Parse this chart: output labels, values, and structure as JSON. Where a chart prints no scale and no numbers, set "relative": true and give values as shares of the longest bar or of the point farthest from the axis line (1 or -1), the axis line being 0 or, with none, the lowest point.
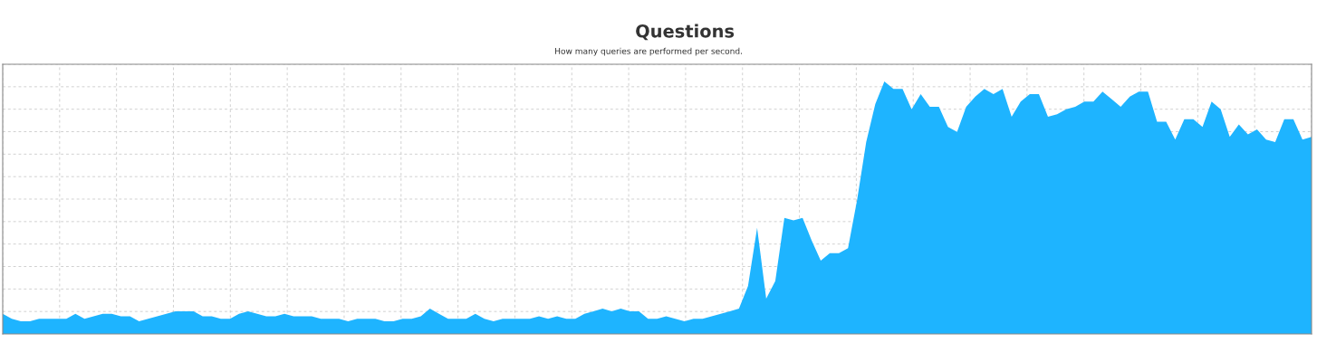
{
  "chart_data": {
    "type": "area",
    "title": "Questions",
    "subtitle": "How many queries are performed per second.",
    "relative": true,
    "grid": true,
    "color": "#1eb4ff",
    "categories": [
      null,
      null,
      null,
      null,
      null,
      null,
      null,
      null,
      null,
      null,
      null,
      null,
      null,
      null,
      null,
      null,
      null,
      null,
      null,
      null,
      null,
      null,
      null,
      null,
      null,
      null,
      null,
      null,
      null,
      null,
      null,
      null,
      null,
      null,
      null,
      null,
      null,
      null,
      null,
      null,
      null,
      null,
      null,
      null,
      null,
      null,
      null,
      null,
      null,
      null,
      null,
      null,
      null,
      null,
      null,
      null,
      null,
      null,
      null,
      null,
      null,
      null,
      null,
      null,
      null,
      null,
      null,
      null,
      null,
      null,
      null,
      null,
      null,
      null,
      null,
      null,
      null,
      null,
      null,
      null,
      null,
      null,
      null,
      null,
      null,
      null,
      null,
      null,
      null,
      null,
      null,
      null,
      null,
      null,
      null,
      null,
      null,
      null,
      null,
      null,
      null,
      null,
      null,
      null,
      null,
      null,
      null,
      null,
      null,
      null,
      null,
      null,
      null,
      null,
      null,
      null,
      null,
      null,
      null,
      null,
      null,
      null,
      null,
      null,
      null,
      null,
      null,
      null,
      null,
      null,
      null,
      null,
      null,
      null,
      null,
      null,
      null,
      null,
      null,
      null,
      null,
      null,
      null,
      null,
      null
    ],
    "values": [
      0.08,
      0.06,
      0.05,
      0.05,
      0.06,
      0.06,
      0.06,
      0.06,
      0.08,
      0.06,
      0.07,
      0.08,
      0.08,
      0.07,
      0.07,
      0.05,
      0.06,
      0.07,
      0.08,
      0.09,
      0.09,
      0.09,
      0.07,
      0.07,
      0.06,
      0.06,
      0.08,
      0.09,
      0.08,
      0.07,
      0.07,
      0.08,
      0.07,
      0.07,
      0.07,
      0.06,
      0.06,
      0.06,
      0.05,
      0.06,
      0.06,
      0.06,
      0.05,
      0.05,
      0.06,
      0.06,
      0.07,
      0.1,
      0.08,
      0.06,
      0.06,
      0.06,
      0.08,
      0.06,
      0.05,
      0.06,
      0.06,
      0.06,
      0.06,
      0.07,
      0.06,
      0.07,
      0.06,
      0.06,
      0.08,
      0.09,
      0.1,
      0.09,
      0.1,
      0.09,
      0.09,
      0.06,
      0.06,
      0.07,
      0.06,
      0.05,
      0.06,
      0.06,
      0.07,
      0.08,
      0.09,
      0.1,
      0.19,
      0.42,
      0.14,
      0.21,
      0.46,
      0.45,
      0.46,
      0.37,
      0.29,
      0.32,
      0.32,
      0.34,
      0.53,
      0.76,
      0.91,
      1.0,
      0.97,
      0.97,
      0.89,
      0.95,
      0.9,
      0.9,
      0.82,
      0.8,
      0.9,
      0.94,
      0.97,
      0.95,
      0.97,
      0.86,
      0.92,
      0.95,
      0.95,
      0.86,
      0.87,
      0.89,
      0.9,
      0.92,
      0.92,
      0.96,
      0.93,
      0.9,
      0.94,
      0.96,
      0.96,
      0.84,
      0.84,
      0.77,
      0.85,
      0.85,
      0.82,
      0.92,
      0.89,
      0.78,
      0.83,
      0.79,
      0.81,
      0.77,
      0.76,
      0.85,
      0.85,
      0.77,
      0.78
    ]
  }
}
